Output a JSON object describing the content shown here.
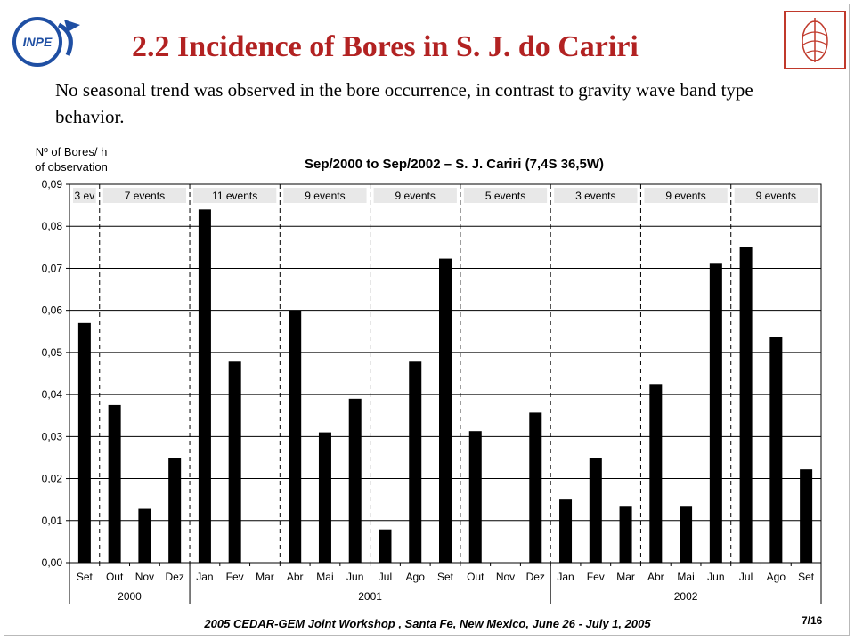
{
  "slide": {
    "title": "2.2 Incidence of Bores in S. J. do Cariri",
    "subtitle": "No seasonal trend was observed in the bore occurrence, in contrast to gravity wave band type behavior.",
    "ylabel_line1": "Nº of Bores/ h",
    "ylabel_line2": "of observation",
    "footer": "2005 CEDAR-GEM Joint Workshop , Santa Fe, New Mexico, June 26 - July 1, 2005",
    "page": "7/16",
    "logo_left_text": "INPE"
  },
  "chart_data": {
    "type": "bar",
    "title": "Sep/2000 to Sep/2002 – S. J. Cariri (7,4S 36,5W)",
    "ylabel": "Nº of Bores/ h of observation",
    "ylim": [
      0,
      0.09
    ],
    "yticks": [
      "0,00",
      "0,01",
      "0,02",
      "0,03",
      "0,04",
      "0,05",
      "0,06",
      "0,07",
      "0,08",
      "0,09"
    ],
    "categories": [
      "Set",
      "Out",
      "Nov",
      "Dez",
      "Jan",
      "Fev",
      "Mar",
      "Abr",
      "Mai",
      "Jun",
      "Jul",
      "Ago",
      "Set",
      "Out",
      "Nov",
      "Dez",
      "Jan",
      "Fev",
      "Mar",
      "Abr",
      "Mai",
      "Jun",
      "Jul",
      "Ago",
      "Set"
    ],
    "values": [
      0.057,
      0.0375,
      0.0128,
      0.0248,
      0.084,
      0.0478,
      0,
      0.06,
      0.031,
      0.039,
      0.0079,
      0.0478,
      0.0723,
      0.0313,
      0,
      0.0357,
      0.015,
      0.0248,
      0.0135,
      0.0425,
      0.0135,
      0.0713,
      0.075,
      0.0537,
      0.0222
    ],
    "years": [
      {
        "label": "2000",
        "start": 0,
        "end": 3
      },
      {
        "label": "2001",
        "start": 4,
        "end": 15
      },
      {
        "label": "2002",
        "start": 16,
        "end": 24
      }
    ],
    "season_dividers": [
      1,
      4,
      7,
      10,
      13,
      16,
      19,
      22
    ],
    "event_labels": [
      "3 ev",
      "7 events",
      "11 events",
      "9 events",
      "9 events",
      "5 events",
      "3 events",
      "9 events",
      "9 events"
    ],
    "bar_color": "#000000",
    "grid": true,
    "label_box_color": "#e8e8e8"
  }
}
